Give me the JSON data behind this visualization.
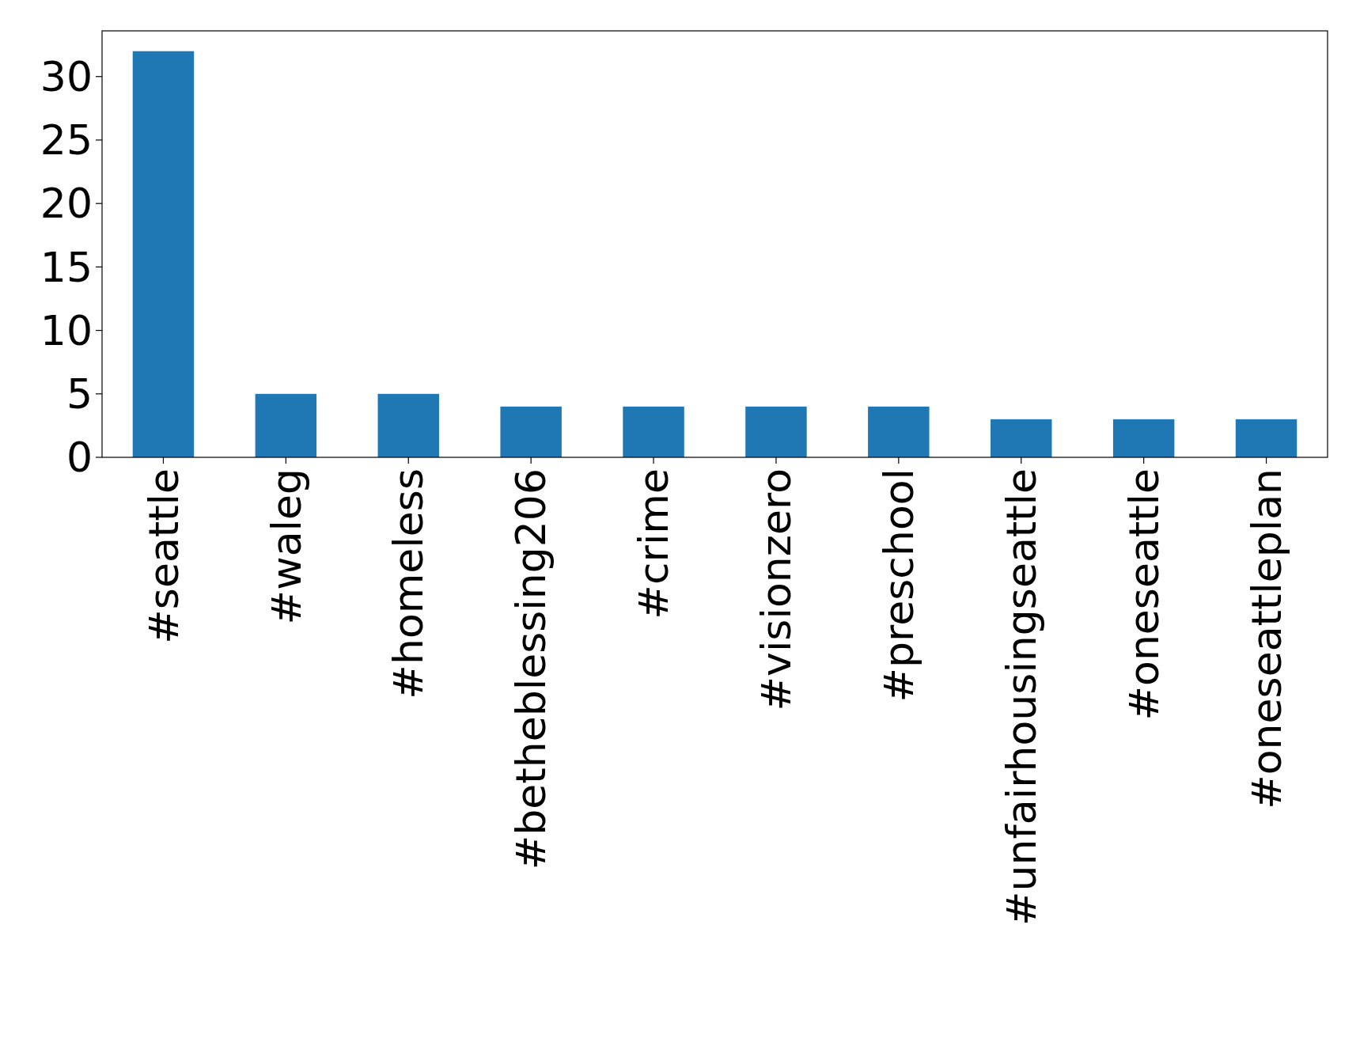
{
  "chart_data": {
    "type": "bar",
    "categories": [
      "#seattle",
      "#waleg",
      "#homeless",
      "#betheblessing206",
      "#crime",
      "#visionzero",
      "#preschool",
      "#unfairhousingseattle",
      "#oneseattle",
      "#oneseattleplan"
    ],
    "values": [
      32,
      5,
      5,
      4,
      4,
      4,
      4,
      3,
      3,
      3
    ],
    "color": "#1f77b4",
    "ylim": [
      0,
      33.6
    ],
    "yticks": [
      0,
      5,
      10,
      15,
      20,
      25,
      30
    ]
  }
}
